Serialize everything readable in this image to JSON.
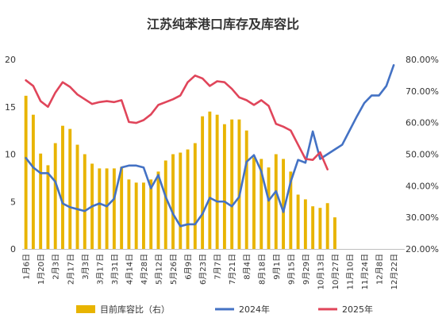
{
  "chart_data": {
    "type": "bar",
    "title": "江苏纯苯港口库存及库容比",
    "xlabel": "",
    "ylabel": "",
    "ylim": [
      0,
      20
    ],
    "y_ticks": [
      "0",
      "5",
      "10",
      "15",
      "20"
    ],
    "ylim_right": [
      0.2,
      0.8
    ],
    "y_right_ticks": [
      "20.00%",
      "30.00%",
      "40.00%",
      "50.00%",
      "60.00%",
      "70.00%",
      "80.00%"
    ],
    "grid": false,
    "legend_position": "bottom",
    "x_tick_labels": [
      "1月6日",
      "1月20日",
      "2月3日",
      "2月17日",
      "3月3日",
      "3月17日",
      "3月31日",
      "4月14日",
      "4月28日",
      "5月12日",
      "5月26日",
      "6月9日",
      "6月23日",
      "7月7日",
      "7月21日",
      "8月4日",
      "8月18日",
      "9月1日",
      "9月15日",
      "9月29日",
      "10月13日",
      "10月27日",
      "11月10日",
      "11月24日",
      "12月8日",
      "12月22日"
    ],
    "series": [
      {
        "name": "目前库容比（右）",
        "kind": "bar",
        "axis": "right",
        "color": "#E8B400",
        "values": [
          0.685,
          0.625,
          0.502,
          0.465,
          0.535,
          0.59,
          0.58,
          0.53,
          0.5,
          0.47,
          0.455,
          0.455,
          0.455,
          0.46,
          0.42,
          0.41,
          0.41,
          0.42,
          0.445,
          0.48,
          0.5,
          0.505,
          0.515,
          0.535,
          0.62,
          0.635,
          0.625,
          0.595,
          0.61,
          0.61,
          0.575,
          0.49,
          0.485,
          0.458,
          0.5,
          0.485,
          0.445,
          0.372,
          0.357,
          0.335,
          0.33,
          0.345,
          0.3
        ]
      },
      {
        "name": "2024年",
        "kind": "line",
        "axis": "left",
        "color": "#4472C4",
        "values": [
          9.6,
          8.6,
          8.0,
          8.0,
          7.1,
          4.8,
          4.4,
          4.2,
          4.0,
          4.5,
          4.8,
          4.5,
          5.3,
          8.6,
          8.8,
          8.8,
          8.6,
          6.4,
          7.8,
          5.5,
          3.7,
          2.4,
          2.6,
          2.6,
          3.7,
          5.4,
          5.0,
          5.0,
          4.5,
          5.5,
          9.2,
          9.9,
          8.2,
          5.1,
          6.1,
          3.9,
          7.1,
          9.4,
          9.1,
          12.4,
          9.5,
          10.0,
          10.5,
          11.0,
          12.5,
          14.0,
          15.4,
          16.2,
          16.2,
          17.2,
          19.4
        ]
      },
      {
        "name": "2025年",
        "kind": "line",
        "axis": "left",
        "color": "#E0455A",
        "values": [
          17.8,
          17.2,
          15.6,
          15.0,
          16.5,
          17.6,
          17.1,
          16.3,
          15.8,
          15.3,
          15.5,
          15.6,
          15.5,
          15.7,
          13.4,
          13.3,
          13.6,
          14.2,
          15.2,
          15.5,
          15.8,
          16.2,
          17.6,
          18.3,
          18.0,
          17.2,
          17.7,
          17.6,
          16.9,
          16.0,
          15.7,
          15.2,
          15.7,
          15.1,
          13.2,
          12.9,
          12.5,
          11.0,
          9.5,
          9.4,
          10.2,
          8.4
        ]
      }
    ]
  }
}
